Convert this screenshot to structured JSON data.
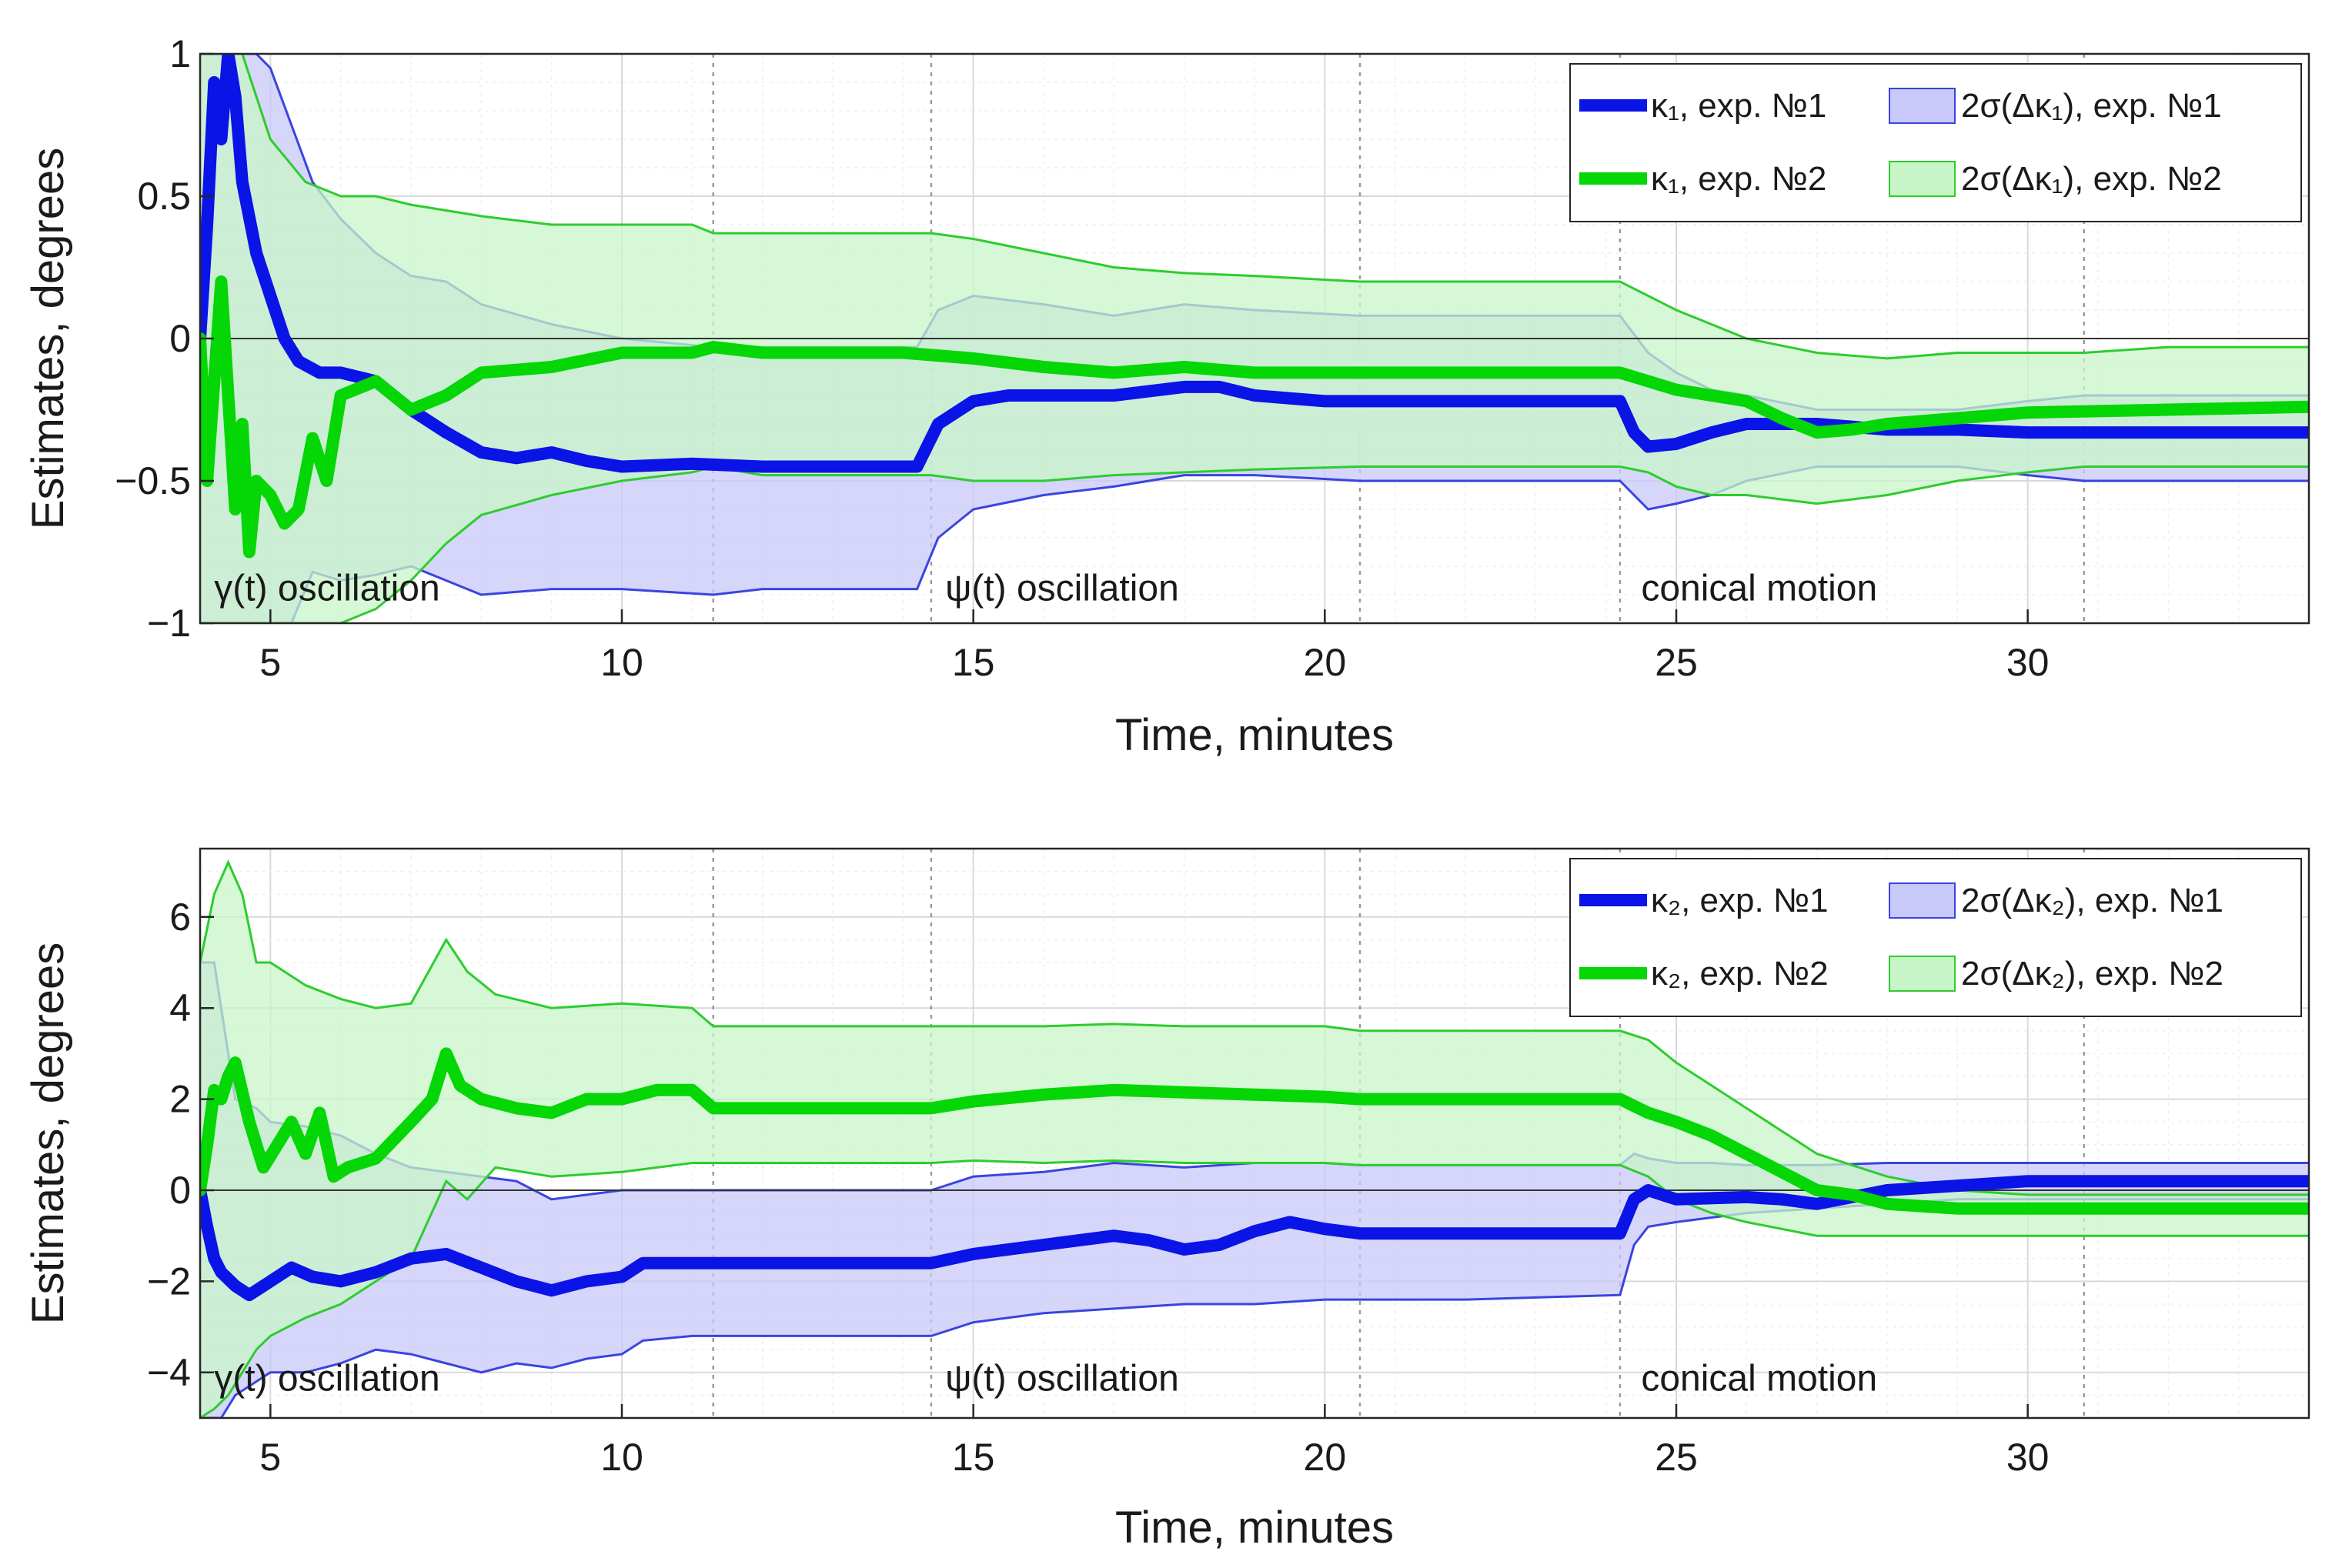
{
  "colors": {
    "blue": "#0a14e6",
    "green": "#05d605",
    "blue_fill": "#c8c8fa",
    "green_fill": "#c8f5c8",
    "overlap_fill": "#b7d9d4"
  },
  "chart_data": [
    {
      "type": "line",
      "id": "top",
      "xlabel": "Time, minutes",
      "ylabel": "Estimates, degrees",
      "xlim": [
        4,
        34
      ],
      "ylim": [
        -1,
        1
      ],
      "xticks": [
        5,
        10,
        15,
        20,
        25,
        30
      ],
      "yticks": [
        1,
        0.5,
        0,
        -0.5,
        -1
      ],
      "ytick_labels": [
        "1",
        "0.5",
        "0",
        "−0.5",
        "−1"
      ],
      "vlines": [
        11.3,
        14.4,
        20.5,
        24.2,
        30.8
      ],
      "annotations": [
        {
          "text": "γ(t) oscillation",
          "x": 4.2,
          "y": -0.92
        },
        {
          "text": "ψ(t) oscillation",
          "x": 14.6,
          "y": -0.92
        },
        {
          "text": "conical motion",
          "x": 24.5,
          "y": -0.92
        }
      ],
      "legend": {
        "position": "top-right",
        "entries": [
          {
            "label": "κ₁, exp. №1",
            "kind": "line",
            "color": "blue"
          },
          {
            "label": "2σ(Δκ₁), exp. №1",
            "kind": "patch",
            "color": "blue"
          },
          {
            "label": "κ₁, exp. №2",
            "kind": "line",
            "color": "green"
          },
          {
            "label": "2σ(Δκ₁), exp. №2",
            "kind": "patch",
            "color": "green"
          }
        ]
      },
      "series": [
        {
          "name": "κ₁, exp. №1",
          "color": "blue",
          "x": [
            4.0,
            4.1,
            4.2,
            4.3,
            4.4,
            4.5,
            4.6,
            4.8,
            5.0,
            5.2,
            5.4,
            5.7,
            6.0,
            6.5,
            7.0,
            7.5,
            8.0,
            8.5,
            9.0,
            9.5,
            10.0,
            11.0,
            12.0,
            13.0,
            14.2,
            14.5,
            15.0,
            15.5,
            16.0,
            17.0,
            18.0,
            18.5,
            19.0,
            20.0,
            22.0,
            24.2,
            24.4,
            24.6,
            25.0,
            25.5,
            26.0,
            27.0,
            28.0,
            29.0,
            30.0,
            32.0,
            34.0
          ],
          "y": [
            0.0,
            0.4,
            0.9,
            0.7,
            1.0,
            0.85,
            0.55,
            0.3,
            0.15,
            0.0,
            -0.08,
            -0.12,
            -0.12,
            -0.15,
            -0.25,
            -0.33,
            -0.4,
            -0.42,
            -0.4,
            -0.43,
            -0.45,
            -0.44,
            -0.45,
            -0.45,
            -0.45,
            -0.3,
            -0.22,
            -0.2,
            -0.2,
            -0.2,
            -0.17,
            -0.17,
            -0.2,
            -0.22,
            -0.22,
            -0.22,
            -0.33,
            -0.38,
            -0.37,
            -0.33,
            -0.3,
            -0.3,
            -0.32,
            -0.32,
            -0.33,
            -0.33,
            -0.33
          ]
        },
        {
          "name": "κ₁, exp. №2",
          "color": "green",
          "x": [
            4.0,
            4.1,
            4.2,
            4.3,
            4.4,
            4.5,
            4.6,
            4.7,
            4.8,
            5.0,
            5.2,
            5.4,
            5.6,
            5.8,
            6.0,
            6.5,
            7.0,
            7.5,
            8.0,
            9.0,
            10.0,
            11.0,
            11.3,
            12.0,
            14.0,
            15.0,
            16.0,
            17.0,
            18.0,
            19.0,
            20.0,
            22.0,
            24.2,
            24.6,
            25.0,
            25.5,
            26.0,
            26.5,
            27.0,
            27.5,
            28.0,
            29.0,
            30.0,
            32.0,
            34.0
          ],
          "y": [
            0.0,
            -0.5,
            -0.15,
            0.2,
            -0.2,
            -0.6,
            -0.3,
            -0.75,
            -0.5,
            -0.55,
            -0.65,
            -0.6,
            -0.35,
            -0.5,
            -0.2,
            -0.15,
            -0.25,
            -0.2,
            -0.12,
            -0.1,
            -0.05,
            -0.05,
            -0.03,
            -0.05,
            -0.05,
            -0.07,
            -0.1,
            -0.12,
            -0.1,
            -0.12,
            -0.12,
            -0.12,
            -0.12,
            -0.15,
            -0.18,
            -0.2,
            -0.22,
            -0.28,
            -0.33,
            -0.32,
            -0.3,
            -0.28,
            -0.26,
            -0.25,
            -0.24
          ]
        }
      ],
      "bands": [
        {
          "name": "2σ(Δκ₁), exp. №1",
          "color": "blue",
          "x": [
            4.0,
            4.2,
            4.4,
            4.6,
            4.8,
            5.0,
            5.3,
            5.6,
            6.0,
            6.5,
            7.0,
            7.5,
            8.0,
            9.0,
            10.0,
            11.3,
            12.0,
            14.2,
            14.5,
            15.0,
            16.0,
            17.0,
            18.0,
            19.0,
            20.5,
            22.0,
            24.2,
            24.6,
            25.0,
            25.5,
            26.0,
            27.0,
            28.0,
            29.0,
            30.0,
            30.8,
            32.0,
            34.0
          ],
          "upper": [
            1.0,
            1.0,
            1.0,
            1.0,
            1.0,
            0.95,
            0.75,
            0.55,
            0.42,
            0.3,
            0.22,
            0.2,
            0.12,
            0.05,
            0.0,
            -0.03,
            -0.03,
            -0.03,
            0.1,
            0.15,
            0.12,
            0.08,
            0.12,
            0.1,
            0.08,
            0.08,
            0.08,
            -0.05,
            -0.12,
            -0.18,
            -0.2,
            -0.25,
            -0.25,
            -0.25,
            -0.22,
            -0.2,
            -0.2,
            -0.2
          ],
          "lower": [
            -1.0,
            -1.0,
            -1.0,
            -1.0,
            -1.0,
            -1.0,
            -1.0,
            -0.82,
            -0.85,
            -0.83,
            -0.8,
            -0.85,
            -0.9,
            -0.88,
            -0.88,
            -0.9,
            -0.88,
            -0.88,
            -0.7,
            -0.6,
            -0.55,
            -0.52,
            -0.48,
            -0.48,
            -0.5,
            -0.5,
            -0.5,
            -0.6,
            -0.58,
            -0.55,
            -0.5,
            -0.45,
            -0.45,
            -0.45,
            -0.48,
            -0.5,
            -0.5,
            -0.5
          ]
        },
        {
          "name": "2σ(Δκ₁), exp. №2",
          "color": "green",
          "x": [
            4.0,
            4.3,
            4.6,
            5.0,
            5.5,
            6.0,
            6.5,
            7.0,
            7.5,
            8.0,
            9.0,
            10.0,
            11.0,
            11.3,
            12.0,
            14.4,
            15.0,
            16.0,
            17.0,
            18.0,
            19.0,
            20.5,
            22.0,
            24.2,
            24.6,
            25.0,
            25.5,
            26.0,
            27.0,
            28.0,
            29.0,
            30.0,
            30.8,
            32.0,
            34.0
          ],
          "upper": [
            1.0,
            1.0,
            1.0,
            0.7,
            0.55,
            0.5,
            0.5,
            0.47,
            0.45,
            0.43,
            0.4,
            0.4,
            0.4,
            0.37,
            0.37,
            0.37,
            0.35,
            0.3,
            0.25,
            0.23,
            0.22,
            0.2,
            0.2,
            0.2,
            0.15,
            0.1,
            0.05,
            0.0,
            -0.05,
            -0.07,
            -0.05,
            -0.05,
            -0.05,
            -0.03,
            -0.03
          ],
          "lower": [
            -1.0,
            -1.0,
            -1.0,
            -1.0,
            -1.0,
            -1.0,
            -0.95,
            -0.85,
            -0.72,
            -0.62,
            -0.55,
            -0.5,
            -0.47,
            -0.45,
            -0.48,
            -0.48,
            -0.5,
            -0.5,
            -0.48,
            -0.47,
            -0.46,
            -0.45,
            -0.45,
            -0.45,
            -0.47,
            -0.52,
            -0.55,
            -0.55,
            -0.58,
            -0.55,
            -0.5,
            -0.47,
            -0.45,
            -0.45,
            -0.45
          ]
        }
      ]
    },
    {
      "type": "line",
      "id": "bottom",
      "xlabel": "Time, minutes",
      "ylabel": "Estimates, degrees",
      "xlim": [
        4,
        34
      ],
      "ylim": [
        -5,
        7.5
      ],
      "xticks": [
        5,
        10,
        15,
        20,
        25,
        30
      ],
      "yticks": [
        6,
        4,
        2,
        0,
        -2,
        -4
      ],
      "ytick_labels": [
        "6",
        "4",
        "2",
        "0",
        "−2",
        "−4"
      ],
      "vlines": [
        11.3,
        14.4,
        20.5,
        24.2,
        30.8
      ],
      "annotations": [
        {
          "text": "γ(t) oscillation",
          "x": 4.2,
          "y": -4.4
        },
        {
          "text": "ψ(t) oscillation",
          "x": 14.6,
          "y": -4.4
        },
        {
          "text": "conical motion",
          "x": 24.5,
          "y": -4.4
        }
      ],
      "legend": {
        "position": "top-right",
        "entries": [
          {
            "label": "κ₂, exp. №1",
            "kind": "line",
            "color": "blue"
          },
          {
            "label": "2σ(Δκ₂), exp. №1",
            "kind": "patch",
            "color": "blue"
          },
          {
            "label": "κ₂, exp. №2",
            "kind": "line",
            "color": "green"
          },
          {
            "label": "2σ(Δκ₂), exp. №2",
            "kind": "patch",
            "color": "green"
          }
        ]
      },
      "series": [
        {
          "name": "κ₂, exp. №1",
          "color": "blue",
          "x": [
            4.0,
            4.1,
            4.2,
            4.3,
            4.5,
            4.7,
            5.0,
            5.3,
            5.6,
            6.0,
            6.5,
            7.0,
            7.5,
            8.0,
            8.5,
            9.0,
            9.5,
            10.0,
            10.3,
            11.0,
            12.0,
            14.4,
            15.0,
            16.0,
            17.0,
            17.5,
            18.0,
            18.5,
            19.0,
            19.5,
            20.0,
            20.5,
            22.0,
            24.2,
            24.4,
            24.6,
            25.0,
            26.0,
            26.5,
            27.0,
            27.5,
            28.0,
            29.0,
            30.0,
            32.0,
            34.0
          ],
          "y": [
            0.0,
            -0.8,
            -1.5,
            -1.8,
            -2.1,
            -2.3,
            -2.0,
            -1.7,
            -1.9,
            -2.0,
            -1.8,
            -1.5,
            -1.4,
            -1.7,
            -2.0,
            -2.2,
            -2.0,
            -1.9,
            -1.6,
            -1.6,
            -1.6,
            -1.6,
            -1.4,
            -1.2,
            -1.0,
            -1.1,
            -1.3,
            -1.2,
            -0.9,
            -0.7,
            -0.85,
            -0.95,
            -0.95,
            -0.95,
            -0.2,
            0.0,
            -0.2,
            -0.15,
            -0.2,
            -0.3,
            -0.15,
            0.0,
            0.1,
            0.2,
            0.2,
            0.2
          ]
        },
        {
          "name": "κ₂, exp. №2",
          "color": "green",
          "x": [
            4.0,
            4.1,
            4.2,
            4.3,
            4.4,
            4.5,
            4.7,
            4.9,
            5.1,
            5.3,
            5.5,
            5.7,
            5.9,
            6.1,
            6.5,
            7.0,
            7.3,
            7.5,
            7.7,
            8.0,
            8.5,
            9.0,
            9.5,
            10.0,
            10.5,
            11.0,
            11.3,
            12.0,
            14.4,
            15.0,
            16.0,
            17.0,
            18.0,
            19.0,
            20.0,
            20.5,
            22.0,
            24.2,
            24.6,
            25.0,
            25.5,
            26.0,
            26.5,
            27.0,
            27.5,
            28.0,
            29.0,
            30.0,
            32.0,
            34.0
          ],
          "y": [
            0.0,
            1.0,
            2.2,
            2.0,
            2.5,
            2.8,
            1.5,
            0.5,
            1.0,
            1.5,
            0.8,
            1.7,
            0.3,
            0.5,
            0.7,
            1.5,
            2.0,
            3.0,
            2.3,
            2.0,
            1.8,
            1.7,
            2.0,
            2.0,
            2.2,
            2.2,
            1.8,
            1.8,
            1.8,
            1.95,
            2.1,
            2.2,
            2.15,
            2.1,
            2.05,
            2.0,
            2.0,
            2.0,
            1.7,
            1.5,
            1.2,
            0.8,
            0.4,
            0.0,
            -0.1,
            -0.3,
            -0.4,
            -0.4,
            -0.4,
            -0.4
          ]
        }
      ],
      "bands": [
        {
          "name": "2σ(Δκ₂), exp. №1",
          "color": "blue",
          "x": [
            4.0,
            4.2,
            4.3,
            4.5,
            4.8,
            5.0,
            5.5,
            6.0,
            6.5,
            7.0,
            7.5,
            8.0,
            8.5,
            9.0,
            9.5,
            10.0,
            10.3,
            11.0,
            12.0,
            14.4,
            15.0,
            16.0,
            17.0,
            18.0,
            19.0,
            20.0,
            20.5,
            22.0,
            24.2,
            24.4,
            24.6,
            25.0,
            25.5,
            26.0,
            27.0,
            28.0,
            29.0,
            30.0,
            30.8,
            32.0,
            34.0
          ],
          "upper": [
            5.0,
            5.0,
            4.0,
            2.0,
            1.8,
            1.5,
            1.4,
            1.2,
            0.8,
            0.5,
            0.4,
            0.3,
            0.2,
            -0.2,
            -0.1,
            0.0,
            0.0,
            0.0,
            0.0,
            0.0,
            0.3,
            0.4,
            0.6,
            0.5,
            0.6,
            0.6,
            0.55,
            0.55,
            0.55,
            0.8,
            0.7,
            0.6,
            0.6,
            0.55,
            0.55,
            0.6,
            0.6,
            0.6,
            0.6,
            0.6,
            0.6
          ],
          "lower": [
            -5.0,
            -5.0,
            -5.0,
            -4.5,
            -4.2,
            -4.0,
            -4.0,
            -3.8,
            -3.5,
            -3.6,
            -3.8,
            -4.0,
            -3.8,
            -3.9,
            -3.7,
            -3.6,
            -3.3,
            -3.2,
            -3.2,
            -3.2,
            -2.9,
            -2.7,
            -2.6,
            -2.5,
            -2.5,
            -2.4,
            -2.4,
            -2.4,
            -2.3,
            -1.2,
            -0.8,
            -0.7,
            -0.6,
            -0.5,
            -0.4,
            -0.3,
            -0.2,
            -0.2,
            -0.2,
            -0.2,
            -0.2
          ]
        },
        {
          "name": "2σ(Δκ₂), exp. №2",
          "color": "green",
          "x": [
            4.0,
            4.2,
            4.4,
            4.6,
            4.8,
            5.0,
            5.5,
            6.0,
            6.5,
            7.0,
            7.5,
            7.8,
            8.2,
            9.0,
            10.0,
            11.0,
            11.3,
            12.0,
            14.4,
            15.0,
            16.0,
            17.0,
            18.0,
            19.0,
            20.0,
            20.5,
            22.0,
            24.2,
            24.6,
            25.0,
            25.5,
            26.0,
            27.0,
            28.0,
            29.0,
            30.0,
            30.8,
            32.0,
            34.0
          ],
          "upper": [
            5.0,
            6.5,
            7.2,
            6.5,
            5.0,
            5.0,
            4.5,
            4.2,
            4.0,
            4.1,
            5.5,
            4.8,
            4.3,
            4.0,
            4.1,
            4.0,
            3.6,
            3.6,
            3.6,
            3.6,
            3.6,
            3.65,
            3.6,
            3.6,
            3.6,
            3.5,
            3.5,
            3.5,
            3.3,
            2.8,
            2.3,
            1.8,
            0.8,
            0.3,
            0.0,
            -0.1,
            -0.1,
            -0.1,
            -0.1
          ],
          "lower": [
            -5.0,
            -4.8,
            -4.5,
            -4.0,
            -3.5,
            -3.2,
            -2.8,
            -2.5,
            -2.0,
            -1.5,
            0.2,
            -0.2,
            0.5,
            0.3,
            0.4,
            0.6,
            0.6,
            0.6,
            0.6,
            0.65,
            0.6,
            0.65,
            0.6,
            0.6,
            0.6,
            0.55,
            0.55,
            0.55,
            0.3,
            -0.2,
            -0.5,
            -0.7,
            -1.0,
            -1.0,
            -1.0,
            -1.0,
            -1.0,
            -1.0,
            -1.0
          ]
        }
      ]
    }
  ]
}
